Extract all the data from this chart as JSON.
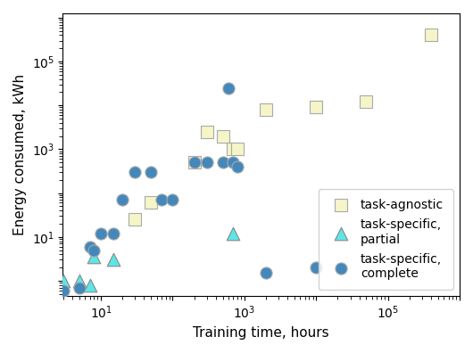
{
  "title": "",
  "xlabel": "Training time, hours",
  "ylabel": "Energy consumed, kWh",
  "task_agnostic": {
    "x": [
      30,
      50,
      200,
      300,
      500,
      700,
      800,
      2000,
      10000,
      50000,
      400000
    ],
    "y": [
      25,
      60,
      500,
      2500,
      2000,
      1000,
      1000,
      8000,
      9000,
      12000,
      400000
    ],
    "marker": "s",
    "color": "#f5f5c8",
    "edgecolor": "#aaaaaa",
    "size": 110,
    "label": "task-agnostic"
  },
  "task_specific_partial": {
    "x": [
      3,
      5,
      7,
      8,
      15,
      700
    ],
    "y": [
      1.0,
      1.0,
      0.8,
      3.5,
      3.0,
      12
    ],
    "marker": "^",
    "color": "#5de6e6",
    "edgecolor": "#888888",
    "size": 110,
    "label": "task-specific,\npartial"
  },
  "task_specific_complete": {
    "x": [
      3,
      5,
      7,
      8,
      10,
      15,
      20,
      30,
      50,
      70,
      100,
      200,
      300,
      500,
      600,
      700,
      800,
      2000,
      10000
    ],
    "y": [
      0.6,
      0.7,
      6,
      5,
      12,
      12,
      70,
      300,
      300,
      70,
      70,
      500,
      500,
      500,
      25000,
      500,
      400,
      1.5,
      2.0
    ],
    "marker": "o",
    "color": "#4488bb",
    "edgecolor": "#aaaaaa",
    "size": 90,
    "label": "task-specific,\ncomplete"
  },
  "xlim_log": [
    0.47,
    6.0
  ],
  "ylim_log": [
    -0.35,
    6.1
  ],
  "figsize": [
    5.3,
    3.96
  ],
  "dpi": 100,
  "legend_loc": "lower right"
}
